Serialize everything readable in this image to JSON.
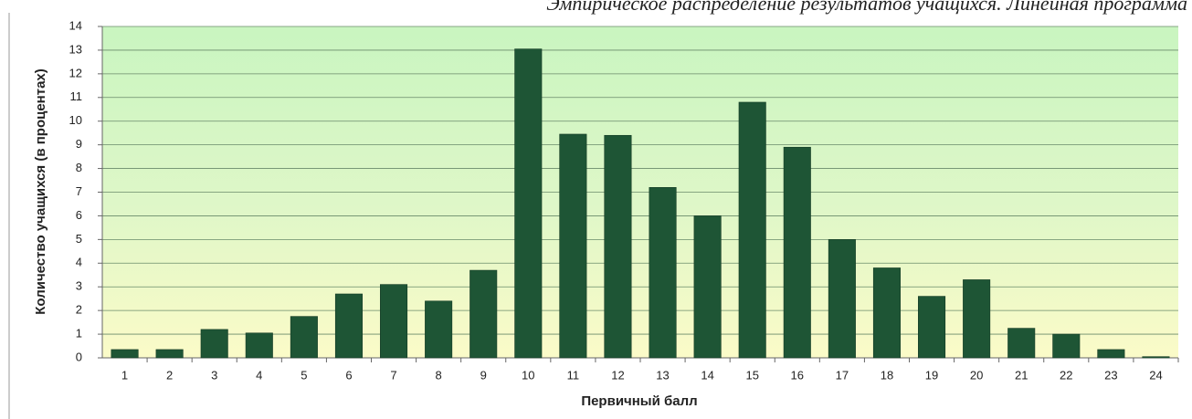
{
  "chart_data": {
    "type": "bar",
    "title": "Эмпирическое распределение результатов учащихся. Линейная программа",
    "xlabel": "Первичный балл",
    "ylabel": "Количество учащихся (в  процентах)",
    "categories": [
      "1",
      "2",
      "3",
      "4",
      "5",
      "6",
      "7",
      "8",
      "9",
      "10",
      "11",
      "12",
      "13",
      "14",
      "15",
      "16",
      "17",
      "18",
      "19",
      "20",
      "21",
      "22",
      "23",
      "24"
    ],
    "values": [
      0.35,
      0.35,
      1.2,
      1.05,
      1.75,
      2.7,
      3.1,
      2.4,
      3.7,
      13.05,
      9.45,
      9.4,
      7.2,
      6.0,
      10.8,
      8.9,
      5.0,
      3.8,
      2.6,
      3.3,
      1.25,
      1.0,
      0.35,
      0.05
    ],
    "color": "#1e5535",
    "ylim": [
      0,
      14
    ],
    "yticks": [
      0,
      1,
      2,
      3,
      4,
      5,
      6,
      7,
      8,
      9,
      10,
      11,
      12,
      13,
      14
    ],
    "grid": true
  }
}
